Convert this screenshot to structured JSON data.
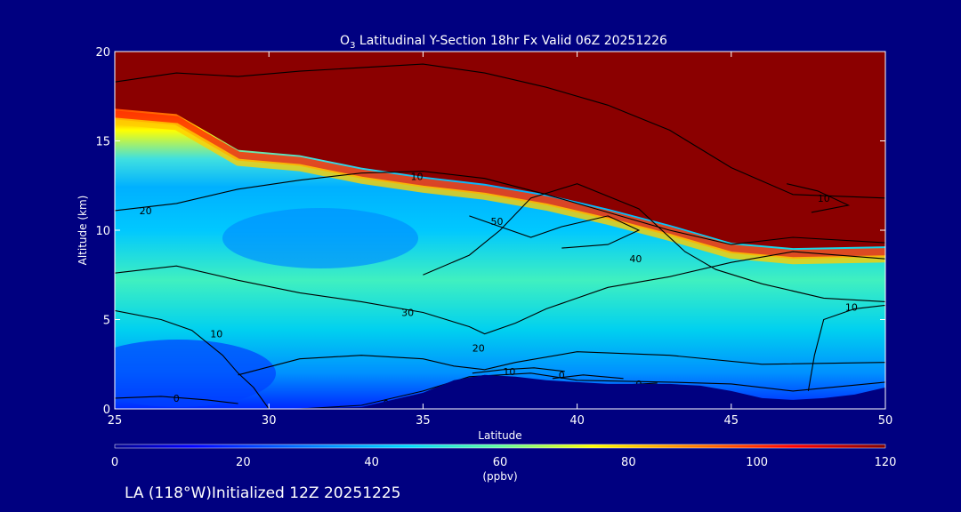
{
  "chart_data": {
    "type": "heatmap",
    "title_main": "O",
    "title_sub": "3",
    "title_rest": " Latitudinal Y-Section 18hr  Fx Valid 06Z 20251226",
    "xlabel": "Latitude",
    "ylabel": "Altitude (km)",
    "xlim": [
      25,
      50
    ],
    "ylim": [
      0,
      20
    ],
    "x_ticks": [
      25,
      30,
      35,
      40,
      45,
      50
    ],
    "y_ticks": [
      0,
      5,
      10,
      15,
      20
    ],
    "colorbar": {
      "ticks": [
        0,
        20,
        40,
        60,
        80,
        100,
        120
      ],
      "units": "(ppbv)"
    },
    "footer": "LA (118°W)Initialized 12Z 20251225",
    "terrain_top_km": [
      [
        25,
        0.0
      ],
      [
        30,
        0.0
      ],
      [
        33,
        0.1
      ],
      [
        35,
        0.9
      ],
      [
        36,
        1.6
      ],
      [
        37,
        1.9
      ],
      [
        38,
        1.8
      ],
      [
        39,
        1.6
      ],
      [
        40,
        1.5
      ],
      [
        41,
        1.4
      ],
      [
        43,
        1.4
      ],
      [
        44,
        1.3
      ],
      [
        45,
        1.0
      ],
      [
        46,
        0.6
      ],
      [
        47,
        0.5
      ],
      [
        48,
        0.6
      ],
      [
        49,
        0.8
      ],
      [
        50,
        1.2
      ]
    ],
    "ozone_boundary_km": [
      [
        25,
        16.8
      ],
      [
        27,
        16.5
      ],
      [
        29,
        14.5
      ],
      [
        31,
        14.2
      ],
      [
        33,
        13.5
      ],
      [
        35,
        13.0
      ],
      [
        37,
        12.6
      ],
      [
        39,
        12.0
      ],
      [
        41,
        11.2
      ],
      [
        43,
        10.3
      ],
      [
        45,
        9.3
      ],
      [
        47,
        9.0
      ],
      [
        50,
        9.1
      ]
    ],
    "contours": [
      {
        "label": "10",
        "label_at": [
          34.8,
          13.0
        ],
        "points": [
          [
            25,
            18.3
          ],
          [
            27,
            18.8
          ],
          [
            29,
            18.6
          ],
          [
            31,
            18.9
          ],
          [
            33,
            19.1
          ],
          [
            35,
            19.3
          ],
          [
            37,
            18.8
          ],
          [
            39,
            18.0
          ],
          [
            41,
            17.0
          ],
          [
            43,
            15.6
          ],
          [
            45,
            13.5
          ],
          [
            47,
            12.0
          ],
          [
            50,
            11.8
          ]
        ]
      },
      {
        "label": "20",
        "label_at": [
          26.0,
          11.1
        ],
        "points": [
          [
            25,
            11.1
          ],
          [
            27,
            11.5
          ],
          [
            29,
            12.3
          ],
          [
            31,
            12.8
          ],
          [
            33,
            13.2
          ],
          [
            35,
            13.3
          ],
          [
            37,
            12.9
          ],
          [
            39,
            12.0
          ],
          [
            41,
            11.0
          ],
          [
            43,
            10.0
          ],
          [
            45,
            9.2
          ],
          [
            47,
            9.6
          ],
          [
            50,
            9.3
          ]
        ]
      },
      {
        "label": "30",
        "label_at": [
          34.5,
          5.4
        ],
        "points": [
          [
            25,
            7.6
          ],
          [
            27,
            8.0
          ],
          [
            29,
            7.2
          ],
          [
            31,
            6.5
          ],
          [
            33,
            6.0
          ],
          [
            35,
            5.4
          ],
          [
            36.5,
            4.6
          ],
          [
            37,
            4.2
          ],
          [
            38,
            4.8
          ],
          [
            39,
            5.6
          ],
          [
            41,
            6.8
          ],
          [
            43,
            7.4
          ],
          [
            45,
            8.2
          ],
          [
            47,
            8.8
          ],
          [
            50,
            8.4
          ]
        ]
      },
      {
        "label": "40",
        "label_at": [
          41.9,
          8.4
        ],
        "points": [
          [
            35,
            7.5
          ],
          [
            36.5,
            8.6
          ],
          [
            37.5,
            10.0
          ],
          [
            38.5,
            11.8
          ],
          [
            40,
            12.6
          ],
          [
            42,
            11.2
          ],
          [
            43.5,
            8.8
          ],
          [
            44.5,
            7.8
          ],
          [
            46,
            7.0
          ],
          [
            48,
            6.2
          ],
          [
            50,
            6.0
          ]
        ]
      },
      {
        "label": "50",
        "label_at": [
          37.4,
          10.5
        ],
        "points": [
          [
            36.5,
            10.8
          ],
          [
            37.5,
            10.2
          ],
          [
            38.5,
            9.6
          ],
          [
            39.5,
            10.2
          ],
          [
            41,
            10.8
          ],
          [
            42,
            10.0
          ],
          [
            41,
            9.2
          ],
          [
            39.5,
            9.0
          ]
        ]
      },
      {
        "label": "10",
        "label_at": [
          48.9,
          5.7
        ],
        "points": [
          [
            47.5,
            1.0
          ],
          [
            47.7,
            3.0
          ],
          [
            48,
            5.0
          ],
          [
            49,
            5.6
          ],
          [
            50,
            5.8
          ]
        ]
      },
      {
        "label": "10",
        "label_at": [
          48.0,
          11.8
        ],
        "points": [
          [
            46.8,
            12.6
          ],
          [
            47.8,
            12.2
          ],
          [
            48.8,
            11.4
          ],
          [
            47.6,
            11.0
          ]
        ]
      },
      {
        "label": "20",
        "label_at": [
          36.8,
          3.4
        ],
        "points": [
          [
            29,
            1.9
          ],
          [
            31,
            2.8
          ],
          [
            33,
            3.0
          ],
          [
            35,
            2.8
          ],
          [
            36,
            2.4
          ],
          [
            37,
            2.2
          ],
          [
            38,
            2.6
          ],
          [
            40,
            3.2
          ],
          [
            43,
            3.0
          ],
          [
            46,
            2.5
          ],
          [
            50,
            2.6
          ]
        ]
      },
      {
        "label": "10",
        "label_at": [
          28.3,
          4.2
        ],
        "points": [
          [
            25,
            5.5
          ],
          [
            26.5,
            5.0
          ],
          [
            27.5,
            4.4
          ],
          [
            28.5,
            3.0
          ],
          [
            29,
            2.0
          ],
          [
            29.5,
            1.2
          ],
          [
            30,
            0.0
          ]
        ]
      },
      {
        "label": "0",
        "label_at": [
          27.0,
          0.6
        ],
        "points": [
          [
            25,
            0.6
          ],
          [
            26.5,
            0.7
          ],
          [
            28,
            0.5
          ],
          [
            29,
            0.3
          ]
        ]
      },
      {
        "label": "0",
        "label_at": [
          33.8,
          0.3
        ],
        "points": [
          [
            31,
            0.0
          ],
          [
            33,
            0.2
          ],
          [
            35,
            1.0
          ],
          [
            36.5,
            1.8
          ],
          [
            38.5,
            2.0
          ],
          [
            40,
            1.6
          ],
          [
            43,
            1.5
          ],
          [
            45,
            1.4
          ],
          [
            47,
            1.0
          ],
          [
            50,
            1.5
          ]
        ]
      },
      {
        "label": "10",
        "label_at": [
          37.8,
          2.1
        ],
        "points": [
          [
            36.6,
            2.0
          ],
          [
            37.6,
            2.2
          ],
          [
            38.6,
            2.3
          ],
          [
            39.6,
            2.1
          ]
        ]
      },
      {
        "label": "0",
        "label_at": [
          39.5,
          1.9
        ],
        "points": [
          [
            39.2,
            1.7
          ],
          [
            40.2,
            1.9
          ],
          [
            41.5,
            1.7
          ]
        ]
      },
      {
        "label": "0",
        "label_at": [
          42.0,
          1.4
        ],
        "points": [
          [
            41.6,
            1.35
          ],
          [
            42.6,
            1.45
          ]
        ]
      }
    ]
  }
}
